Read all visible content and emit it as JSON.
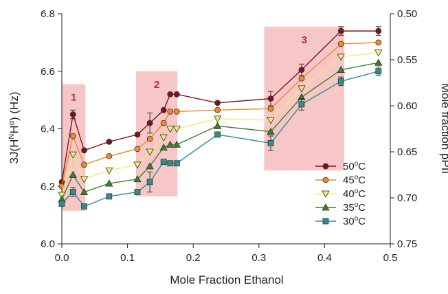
{
  "chart_data": {
    "type": "line",
    "xlabel": "Mole Fraction Ethanol",
    "ylabel_left": {
      "prefix": "3",
      "main": "J(H",
      "sup1": "N",
      "mid": "H",
      "sup2": "α",
      "suffix": ") (Hz)"
    },
    "ylabel_right": "Mole fraction pPII",
    "xlim": [
      0,
      0.5
    ],
    "ylim": [
      6.0,
      6.8
    ],
    "y2lim": [
      0.5,
      0.75
    ],
    "x_ticks": [
      "0.0",
      "0.1",
      "0.2",
      "0.3",
      "0.4",
      "0.5"
    ],
    "x_tick_values": [
      0,
      0.1,
      0.2,
      0.3,
      0.4,
      0.5
    ],
    "y_ticks": [
      "6.0",
      "6.2",
      "6.4",
      "6.6",
      "6.8"
    ],
    "y_tick_values": [
      6.0,
      6.2,
      6.4,
      6.6,
      6.8
    ],
    "y2_ticks": [
      "0.50",
      "0.55",
      "0.60",
      "0.65",
      "0.70",
      "0.75"
    ],
    "y2_tick_values": [
      0.5,
      0.55,
      0.6,
      0.65,
      0.7,
      0.75
    ],
    "grid": false,
    "legend_position": "lower-right",
    "regions": [
      {
        "label": "1",
        "x": [
          0.0,
          0.036
        ],
        "y": [
          6.115,
          6.555
        ]
      },
      {
        "label": "2",
        "x": [
          0.113,
          0.176
        ],
        "y": [
          6.165,
          6.6
        ]
      },
      {
        "label": "3",
        "x": [
          0.308,
          0.43
        ],
        "y": [
          6.255,
          6.755
        ]
      }
    ],
    "x": [
      0.0,
      0.017,
      0.034,
      0.072,
      0.115,
      0.134,
      0.155,
      0.165,
      0.175,
      0.237,
      0.318,
      0.365,
      0.425,
      0.482
    ],
    "series": [
      {
        "name": "50",
        "unit": "oC",
        "marker": "circle",
        "color": "#7a1420",
        "values": [
          6.215,
          6.45,
          6.325,
          6.355,
          6.38,
          6.42,
          6.465,
          6.52,
          6.52,
          6.49,
          6.505,
          6.605,
          6.74,
          6.74
        ]
      },
      {
        "name": "45",
        "unit": "oC",
        "marker": "circle",
        "color": "#f08a2b",
        "values": [
          6.2,
          6.375,
          6.275,
          6.305,
          6.33,
          6.365,
          6.42,
          6.46,
          6.46,
          6.465,
          6.47,
          6.575,
          6.695,
          6.7
        ]
      },
      {
        "name": "40",
        "unit": "oC",
        "marker": "triangle-down",
        "color": "#eeee77",
        "values": [
          6.17,
          6.31,
          6.225,
          6.255,
          6.275,
          6.32,
          6.37,
          6.4,
          6.4,
          6.435,
          6.43,
          6.54,
          6.65,
          6.665
        ]
      },
      {
        "name": "35",
        "unit": "oC",
        "marker": "triangle-up",
        "color": "#3f7f2a",
        "values": [
          6.155,
          6.24,
          6.18,
          6.21,
          6.225,
          6.27,
          6.335,
          6.345,
          6.345,
          6.41,
          6.39,
          6.51,
          6.605,
          6.63
        ]
      },
      {
        "name": "30",
        "unit": "oC",
        "marker": "square",
        "color": "#2f8f8f",
        "values": [
          6.14,
          6.18,
          6.13,
          6.165,
          6.18,
          6.215,
          6.285,
          6.28,
          6.28,
          6.38,
          6.35,
          6.485,
          6.565,
          6.6
        ]
      }
    ],
    "error_bars": {
      "series": "top-and-bottom",
      "values": [
        0.0,
        0.015,
        0.0,
        0.0,
        0.0,
        0.035,
        0.0,
        0.0,
        0.0,
        0.0,
        0.025,
        0.02,
        0.015,
        0.015
      ]
    },
    "colors": {
      "region_fill": "#f7c6c6",
      "region_label": "#b0303a",
      "axis": "#222222"
    }
  }
}
